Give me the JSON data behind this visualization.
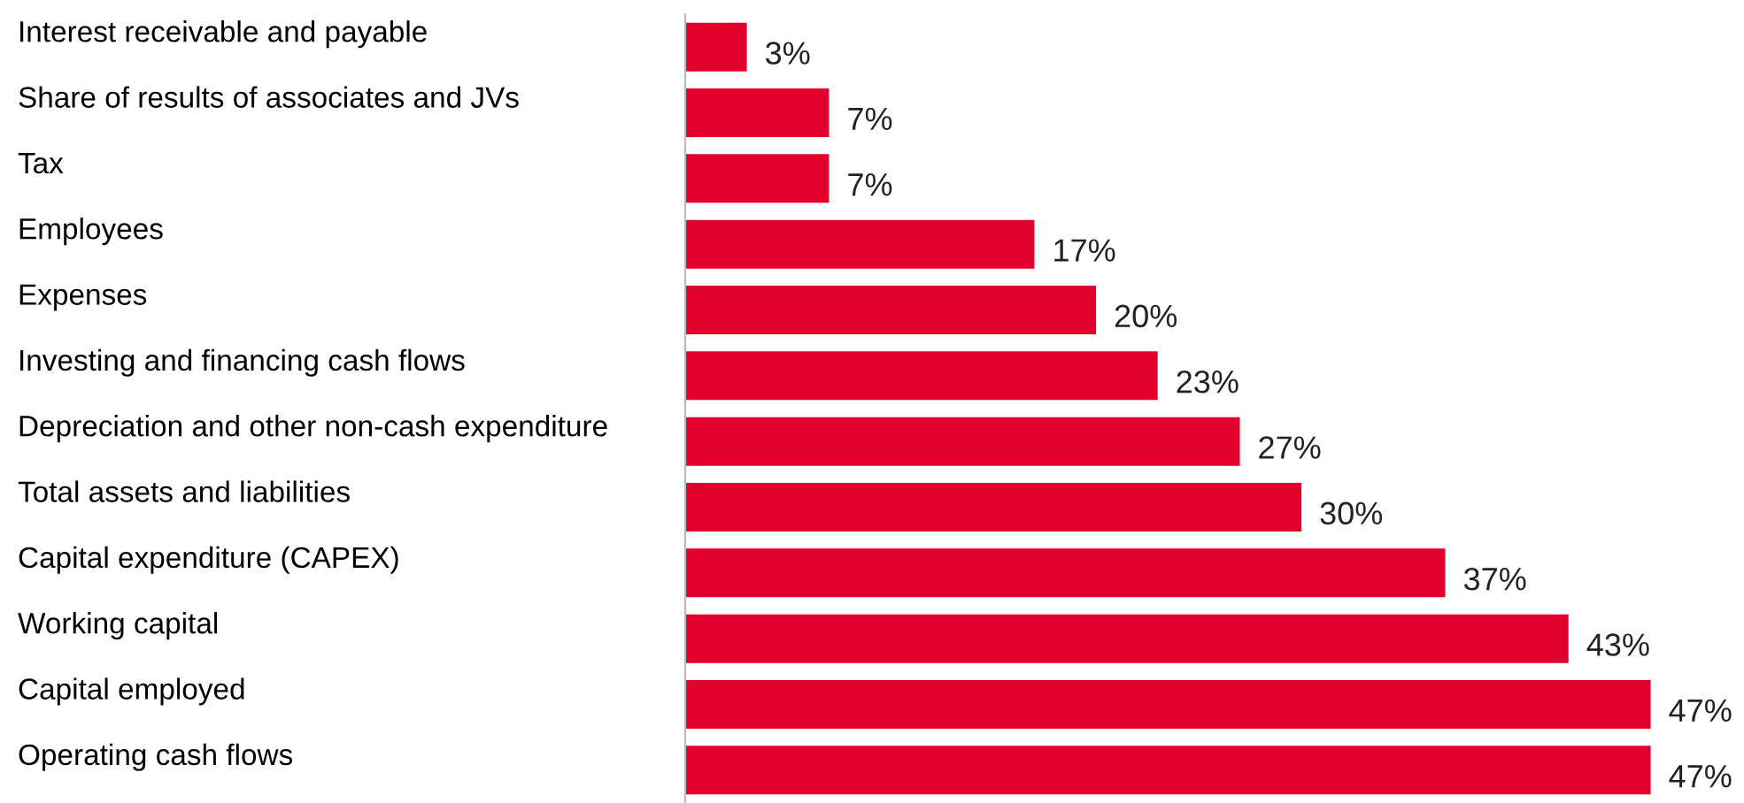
{
  "chart_data": {
    "type": "bar",
    "orientation": "horizontal",
    "categories": [
      "Interest receivable and payable",
      "Share of results of associates and JVs",
      "Tax",
      "Employees",
      "Expenses",
      "Investing and financing cash flows",
      "Depreciation and other non-cash expenditure",
      "Total assets and liabilities",
      "Capital expenditure (CAPEX)",
      "Working capital",
      "Capital employed",
      "Operating cash flows"
    ],
    "values": [
      3,
      7,
      7,
      17,
      20,
      23,
      27,
      30,
      37,
      43,
      47,
      47
    ],
    "value_labels": [
      "3%",
      "7%",
      "7%",
      "17%",
      "20%",
      "23%",
      "27%",
      "30%",
      "37%",
      "43%",
      "47%",
      "47%"
    ],
    "color": "#e0002b",
    "tick_labels": "y",
    "grid": false,
    "legend": false
  }
}
